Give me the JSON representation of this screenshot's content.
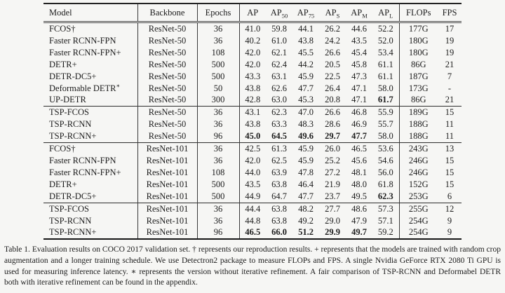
{
  "table": {
    "header": [
      {
        "key": "model",
        "text": "Model",
        "sub": "",
        "sep": false
      },
      {
        "key": "backbone",
        "text": "Backbone",
        "sub": "",
        "sep": true
      },
      {
        "key": "epochs",
        "text": "Epochs",
        "sub": "",
        "sep": true
      },
      {
        "key": "ap",
        "text": "AP",
        "sub": "",
        "sep": true
      },
      {
        "key": "ap50",
        "text": "AP",
        "sub": "50",
        "sep": false
      },
      {
        "key": "ap75",
        "text": "AP",
        "sub": "75",
        "sep": false
      },
      {
        "key": "aps",
        "text": "AP",
        "sub": "S",
        "sep": false
      },
      {
        "key": "apm",
        "text": "AP",
        "sub": "M",
        "sep": false
      },
      {
        "key": "apl",
        "text": "AP",
        "sub": "L",
        "sep": false
      },
      {
        "key": "flops",
        "text": "FLOPs",
        "sub": "",
        "sep": true
      },
      {
        "key": "fps",
        "text": "FPS",
        "sub": "",
        "sep": false
      }
    ],
    "groups": [
      {
        "name": "resnet50-baselines",
        "rows": [
          {
            "model": "FCOS†",
            "sup": "",
            "backbone": "ResNet-50",
            "epochs": "36",
            "ap": [
              "41.0",
              "59.8",
              "44.1",
              "26.2",
              "44.6",
              "52.2"
            ],
            "bold": [],
            "flops": "177G",
            "fps": "17"
          },
          {
            "model": "Faster RCNN-FPN",
            "sup": "",
            "backbone": "ResNet-50",
            "epochs": "36",
            "ap": [
              "40.2",
              "61.0",
              "43.8",
              "24.2",
              "43.5",
              "52.0"
            ],
            "bold": [],
            "flops": "180G",
            "fps": "19"
          },
          {
            "model": "Faster RCNN-FPN+",
            "sup": "",
            "backbone": "ResNet-50",
            "epochs": "108",
            "ap": [
              "42.0",
              "62.1",
              "45.5",
              "26.6",
              "45.4",
              "53.4"
            ],
            "bold": [],
            "flops": "180G",
            "fps": "19"
          },
          {
            "model": "DETR+",
            "sup": "",
            "backbone": "ResNet-50",
            "epochs": "500",
            "ap": [
              "42.0",
              "62.4",
              "44.2",
              "20.5",
              "45.8",
              "61.1"
            ],
            "bold": [],
            "flops": "86G",
            "fps": "21"
          },
          {
            "model": "DETR-DC5+",
            "sup": "",
            "backbone": "ResNet-50",
            "epochs": "500",
            "ap": [
              "43.3",
              "63.1",
              "45.9",
              "22.5",
              "47.3",
              "61.1"
            ],
            "bold": [],
            "flops": "187G",
            "fps": "7"
          },
          {
            "model": "Deformable DETR",
            "sup": "∗",
            "backbone": "ResNet-50",
            "epochs": "50",
            "ap": [
              "43.8",
              "62.6",
              "47.7",
              "26.4",
              "47.1",
              "58.0"
            ],
            "bold": [],
            "flops": "173G",
            "fps": "-"
          },
          {
            "model": "UP-DETR",
            "sup": "",
            "backbone": "ResNet-50",
            "epochs": "300",
            "ap": [
              "42.8",
              "63.0",
              "45.3",
              "20.8",
              "47.1",
              "61.7"
            ],
            "bold": [
              5
            ],
            "flops": "86G",
            "fps": "21"
          }
        ]
      },
      {
        "name": "tsp-resnet50",
        "rows": [
          {
            "model": "TSP-FCOS",
            "sup": "",
            "backbone": "ResNet-50",
            "epochs": "36",
            "ap": [
              "43.1",
              "62.3",
              "47.0",
              "26.6",
              "46.8",
              "55.9"
            ],
            "bold": [],
            "flops": "189G",
            "fps": "15"
          },
          {
            "model": "TSP-RCNN",
            "sup": "",
            "backbone": "ResNet-50",
            "epochs": "36",
            "ap": [
              "43.8",
              "63.3",
              "48.3",
              "28.6",
              "46.9",
              "55.7"
            ],
            "bold": [],
            "flops": "188G",
            "fps": "11"
          },
          {
            "model": "TSP-RCNN+",
            "sup": "",
            "backbone": "ResNet-50",
            "epochs": "96",
            "ap": [
              "45.0",
              "64.5",
              "49.6",
              "29.7",
              "47.7",
              "58.0"
            ],
            "bold": [
              0,
              1,
              2,
              3,
              4
            ],
            "flops": "188G",
            "fps": "11"
          }
        ]
      },
      {
        "name": "resnet101-baselines",
        "rows": [
          {
            "model": "FCOS†",
            "sup": "",
            "backbone": "ResNet-101",
            "epochs": "36",
            "ap": [
              "42.5",
              "61.3",
              "45.9",
              "26.0",
              "46.5",
              "53.6"
            ],
            "bold": [],
            "flops": "243G",
            "fps": "13"
          },
          {
            "model": "Faster RCNN-FPN",
            "sup": "",
            "backbone": "ResNet-101",
            "epochs": "36",
            "ap": [
              "42.0",
              "62.5",
              "45.9",
              "25.2",
              "45.6",
              "54.6"
            ],
            "bold": [],
            "flops": "246G",
            "fps": "15"
          },
          {
            "model": "Faster RCNN-FPN+",
            "sup": "",
            "backbone": "ResNet-101",
            "epochs": "108",
            "ap": [
              "44.0",
              "63.9",
              "47.8",
              "27.2",
              "48.1",
              "56.0"
            ],
            "bold": [],
            "flops": "246G",
            "fps": "15"
          },
          {
            "model": "DETR+",
            "sup": "",
            "backbone": "ResNet-101",
            "epochs": "500",
            "ap": [
              "43.5",
              "63.8",
              "46.4",
              "21.9",
              "48.0",
              "61.8"
            ],
            "bold": [],
            "flops": "152G",
            "fps": "15"
          },
          {
            "model": "DETR-DC5+",
            "sup": "",
            "backbone": "ResNet-101",
            "epochs": "500",
            "ap": [
              "44.9",
              "64.7",
              "47.7",
              "23.7",
              "49.5",
              "62.3"
            ],
            "bold": [
              5
            ],
            "flops": "253G",
            "fps": "6"
          }
        ]
      },
      {
        "name": "tsp-resnet101",
        "rows": [
          {
            "model": "TSP-FCOS",
            "sup": "",
            "backbone": "ResNet-101",
            "epochs": "36",
            "ap": [
              "44.4",
              "63.8",
              "48.2",
              "27.7",
              "48.6",
              "57.3"
            ],
            "bold": [],
            "flops": "255G",
            "fps": "12"
          },
          {
            "model": "TSP-RCNN",
            "sup": "",
            "backbone": "ResNet-101",
            "epochs": "36",
            "ap": [
              "44.8",
              "63.8",
              "49.2",
              "29.0",
              "47.9",
              "57.1"
            ],
            "bold": [],
            "flops": "254G",
            "fps": "9"
          },
          {
            "model": "TSP-RCNN+",
            "sup": "",
            "backbone": "ResNet-101",
            "epochs": "96",
            "ap": [
              "46.5",
              "66.0",
              "51.2",
              "29.9",
              "49.7",
              "59.2"
            ],
            "bold": [
              0,
              1,
              2,
              3,
              4
            ],
            "flops": "254G",
            "fps": "9"
          }
        ]
      }
    ]
  },
  "caption": "Table 1. Evaluation results on COCO 2017 validation set. † represents our reproduction results. + represents that the models are trained with random crop augmentation and a longer training schedule. We use Detectron2 package to measure FLOPs and FPS. A single Nvidia GeForce RTX 2080 Ti GPU is used for measuring inference latency. ∗ represents the version without iterative refinement. A fair comparison of TSP-RCNN and Deformabel DETR both with iterative refinement can be found in the appendix."
}
